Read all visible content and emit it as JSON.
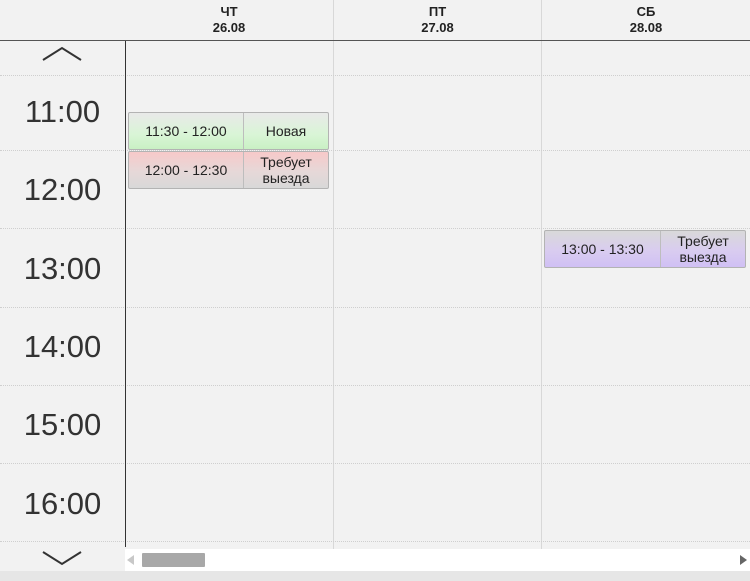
{
  "days": [
    {
      "weekday": "ЧТ",
      "date": "26.08"
    },
    {
      "weekday": "ПТ",
      "date": "27.08"
    },
    {
      "weekday": "СБ",
      "date": "28.08"
    }
  ],
  "hours": [
    "11:00",
    "12:00",
    "13:00",
    "14:00",
    "15:00",
    "16:00"
  ],
  "events": [
    {
      "time": "11:30 - 12:00",
      "status": "Новая",
      "color": "#c9f0c4"
    },
    {
      "time": "12:00 - 12:30",
      "status": "Требует выезда",
      "color": "#f7c9c9"
    },
    {
      "time": "13:00 - 13:30",
      "status": "Требует выезда",
      "color": "#d0c0f4"
    }
  ],
  "icons": {
    "scroll_up": "chevron-up-icon",
    "scroll_down": "chevron-down-icon"
  }
}
